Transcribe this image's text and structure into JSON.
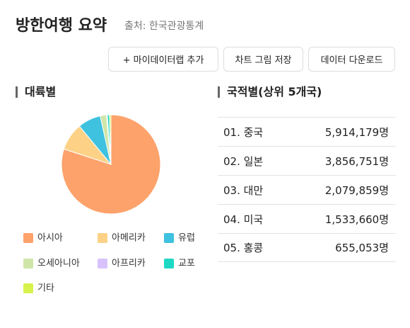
{
  "header": {
    "title": "방한여행 요약",
    "source": "출처: 한국관광통계"
  },
  "buttons": [
    "+ 마이데이터랩 추가",
    "차트 그림 저장",
    "데이터 다운로드"
  ],
  "chart_data": {
    "type": "pie",
    "title": "대륙별",
    "categories": [
      "아시아",
      "아메리카",
      "유럽",
      "오세아니아",
      "아프리카",
      "교포",
      "기타"
    ],
    "values": [
      80,
      9,
      7.5,
      2,
      0.3,
      0.7,
      0.5
    ],
    "colors": [
      "#fda26b",
      "#fdd286",
      "#3fc1e0",
      "#cfe6a8",
      "#d9c2fb",
      "#1ed8c4",
      "#d7f24b"
    ]
  },
  "table": {
    "title": "국적별(상위 5개국)",
    "rows": [
      [
        "01. 중국",
        "5,914,179명"
      ],
      [
        "02. 일본",
        "3,856,751명"
      ],
      [
        "03. 대만",
        "2,079,859명"
      ],
      [
        "04. 미국",
        "1,533,660명"
      ],
      [
        "05. 홍콩",
        "655,053명"
      ]
    ]
  }
}
